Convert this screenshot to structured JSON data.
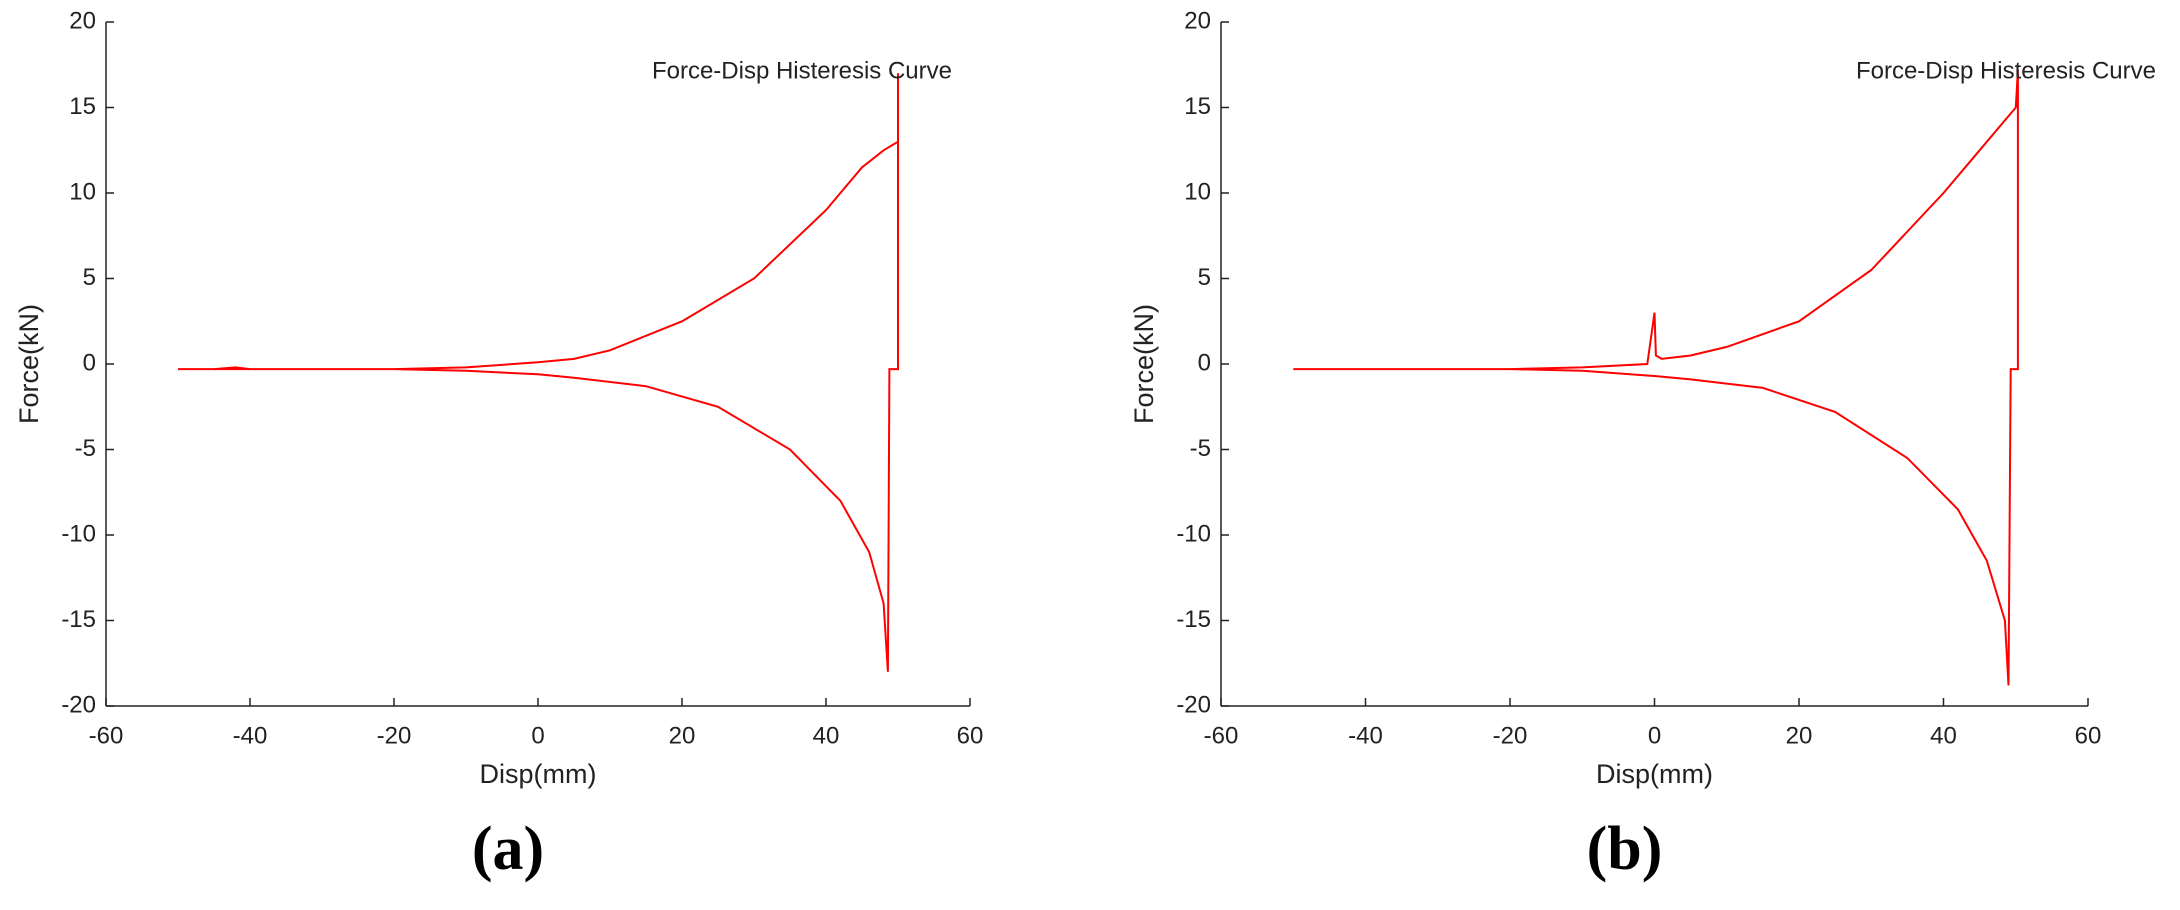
{
  "chart_data": [
    {
      "type": "line",
      "label": "(a)",
      "xlabel": "Disp(mm)",
      "ylabel": "Force(kN)",
      "xlim": [
        -60,
        60
      ],
      "xticks": [
        -60,
        -40,
        -20,
        0,
        20,
        40,
        60
      ],
      "ylim": [
        -20,
        20
      ],
      "yticks": [
        -20,
        -15,
        -10,
        -5,
        0,
        5,
        10,
        15,
        20
      ],
      "legend": "top-right",
      "x": [
        -50,
        -45,
        -42,
        -40,
        -30,
        -20,
        -10,
        0,
        5,
        10,
        20,
        30,
        40,
        45,
        48,
        50,
        50,
        50,
        49.5,
        48.8,
        48.6,
        48,
        46,
        42,
        35,
        25,
        15,
        5,
        0,
        -10,
        -20,
        -30,
        -40,
        -50
      ],
      "series": [
        {
          "name": "Force-Disp Histeresis Curve",
          "color": "#ff0000",
          "values": [
            -0.3,
            -0.3,
            -0.2,
            -0.3,
            -0.3,
            -0.3,
            -0.2,
            0.1,
            0.3,
            0.8,
            2.5,
            5,
            9,
            11.5,
            12.5,
            13,
            17,
            -0.3,
            -0.3,
            -0.3,
            -18,
            -14,
            -11,
            -8,
            -5,
            -2.5,
            -1.3,
            -0.8,
            -0.6,
            -0.4,
            -0.3,
            -0.3,
            -0.3,
            -0.3
          ]
        }
      ]
    },
    {
      "type": "line",
      "label": "(b)",
      "xlabel": "Disp(mm)",
      "ylabel": "Force(kN)",
      "xlim": [
        -60,
        60
      ],
      "xticks": [
        -60,
        -40,
        -20,
        0,
        20,
        40,
        60
      ],
      "ylim": [
        -20,
        20
      ],
      "yticks": [
        -20,
        -15,
        -10,
        -5,
        0,
        5,
        10,
        15,
        20
      ],
      "legend": "top-right",
      "x": [
        -50,
        -40,
        -30,
        -20,
        -10,
        -1,
        0,
        0.2,
        1,
        5,
        10,
        20,
        30,
        40,
        45,
        50,
        50.3,
        50.3,
        50,
        49.3,
        49,
        48.5,
        46,
        42,
        35,
        25,
        15,
        5,
        0,
        -10,
        -20,
        -30,
        -40,
        -50
      ],
      "series": [
        {
          "name": "Force-Disp Histeresis Curve",
          "color": "#ff0000",
          "values": [
            -0.3,
            -0.3,
            -0.3,
            -0.3,
            -0.2,
            0,
            3,
            0.5,
            0.3,
            0.5,
            1,
            2.5,
            5.5,
            10,
            12.5,
            15,
            17.2,
            -0.3,
            -0.3,
            -0.3,
            -18.8,
            -15,
            -11.5,
            -8.5,
            -5.5,
            -2.8,
            -1.4,
            -0.9,
            -0.7,
            -0.4,
            -0.3,
            -0.3,
            -0.3,
            -0.3
          ]
        }
      ]
    }
  ]
}
